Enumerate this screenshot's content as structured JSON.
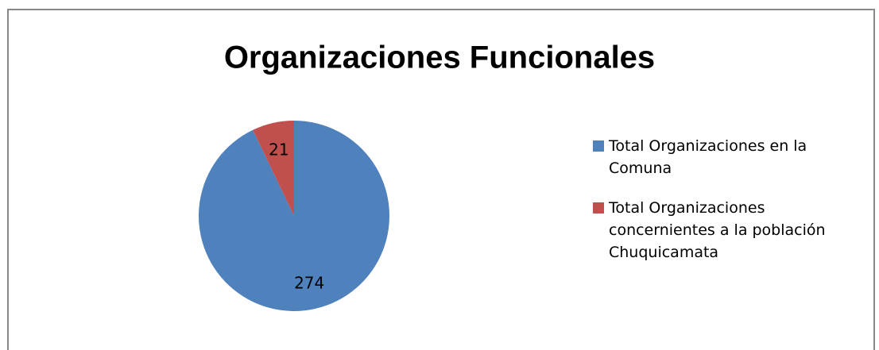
{
  "chart_data": {
    "type": "pie",
    "title": "Organizaciones Funcionales",
    "categories": [
      "Total Organizaciones en la Comuna",
      "Total Organizaciones concernientes a la población Chuquicamata"
    ],
    "values": [
      274,
      21
    ],
    "colors": [
      "#4f81bd",
      "#c0504d"
    ],
    "legend": "right"
  }
}
